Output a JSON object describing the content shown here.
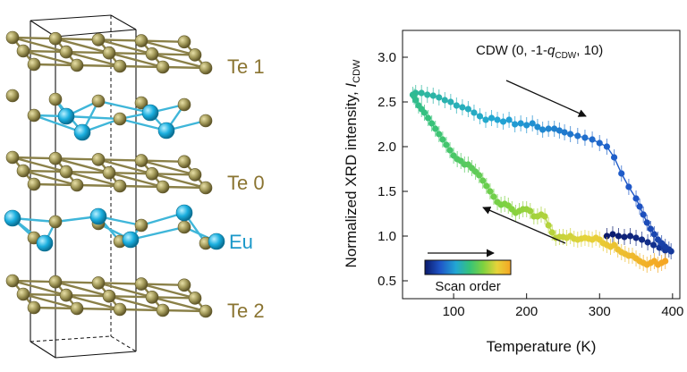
{
  "structure": {
    "layer_labels": {
      "te1": "Te 1",
      "te0": "Te 0",
      "eu": "Eu",
      "te2": "Te 2"
    },
    "colors": {
      "te_atom": "#a39a5a",
      "eu_atom": "#1aaede",
      "te_label": "#8a7431",
      "eu_label": "#1b98c9"
    }
  },
  "chart_data": {
    "type": "scatter",
    "xlabel": "Temperature (K)",
    "ylabel_main": "Normalized XRD intensity, ",
    "ylabel_sym": "I",
    "ylabel_sub": "CDW",
    "xlim": [
      30,
      410
    ],
    "ylim": [
      0.3,
      3.3
    ],
    "xticks": [
      100,
      200,
      300,
      400
    ],
    "yticks": [
      0.5,
      1.0,
      1.5,
      2.0,
      2.5,
      3.0
    ],
    "xtick_labels": [
      "100",
      "200",
      "300",
      "400"
    ],
    "ytick_labels": [
      "0.5",
      "1.0",
      "1.5",
      "2.0",
      "2.5",
      "3.0"
    ],
    "annotation": {
      "prefix": "CDW (0, -1-",
      "q": "q",
      "qsub": "CDW",
      "suffix": ", 10)"
    },
    "colorbar_label": "Scan order",
    "colormap": [
      "#0b1a6b",
      "#1f56c8",
      "#22a6d4",
      "#35c27a",
      "#7fd23f",
      "#e6d33a",
      "#f5a623"
    ],
    "series": [
      {
        "values_x": [
          310,
          318,
          326,
          334,
          342,
          350,
          358,
          366,
          374,
          382,
          390,
          398,
          395,
          390,
          385,
          380,
          375,
          370,
          365,
          360,
          355,
          350,
          340,
          330,
          320,
          310,
          300,
          290,
          280,
          270,
          260,
          252,
          245,
          238,
          230,
          222,
          215,
          208,
          200,
          192,
          184,
          176,
          168,
          160,
          152,
          144,
          136,
          128,
          120,
          112,
          104,
          96,
          88,
          80,
          72,
          64,
          56,
          48,
          44,
          46,
          48,
          52,
          56,
          60,
          65,
          70,
          75,
          80,
          85,
          90,
          95,
          100,
          105,
          110,
          115,
          120,
          125,
          130,
          135,
          140,
          145,
          150,
          155,
          160,
          165,
          170,
          175,
          180,
          185,
          190,
          195,
          200,
          205,
          210,
          215,
          220,
          225,
          230,
          235,
          240,
          245,
          250,
          255,
          260,
          265,
          270,
          275,
          280,
          285,
          290,
          295,
          300,
          305,
          310,
          315,
          320,
          325,
          330,
          335,
          340,
          345,
          350,
          355,
          360,
          365,
          370,
          375,
          380,
          385,
          390
        ],
        "values_y": [
          1.0,
          1.02,
          1.0,
          0.99,
          1.0,
          0.98,
          0.96,
          0.93,
          0.9,
          0.87,
          0.84,
          0.83,
          0.85,
          0.88,
          0.92,
          0.96,
          1.02,
          1.08,
          1.15,
          1.24,
          1.33,
          1.42,
          1.55,
          1.7,
          1.88,
          2.0,
          2.04,
          2.08,
          2.1,
          2.12,
          2.14,
          2.16,
          2.18,
          2.2,
          2.2,
          2.19,
          2.22,
          2.26,
          2.24,
          2.26,
          2.25,
          2.3,
          2.28,
          2.3,
          2.32,
          2.3,
          2.34,
          2.38,
          2.42,
          2.44,
          2.46,
          2.5,
          2.52,
          2.55,
          2.57,
          2.58,
          2.6,
          2.6,
          2.58,
          2.56,
          2.52,
          2.46,
          2.42,
          2.38,
          2.32,
          2.26,
          2.2,
          2.14,
          2.08,
          2.02,
          1.96,
          1.9,
          1.86,
          1.84,
          1.8,
          1.8,
          1.76,
          1.72,
          1.68,
          1.62,
          1.56,
          1.5,
          1.44,
          1.38,
          1.35,
          1.36,
          1.34,
          1.3,
          1.26,
          1.28,
          1.3,
          1.3,
          1.28,
          1.22,
          1.22,
          1.24,
          1.22,
          1.12,
          1.04,
          0.98,
          0.99,
          0.99,
          0.98,
          1.0,
          0.97,
          0.96,
          0.97,
          0.98,
          0.97,
          0.96,
          0.98,
          0.96,
          0.92,
          0.9,
          0.88,
          0.9,
          0.85,
          0.82,
          0.8,
          0.78,
          0.78,
          0.75,
          0.72,
          0.7,
          0.68,
          0.7,
          0.72,
          0.68,
          0.7,
          0.72
        ]
      }
    ]
  }
}
